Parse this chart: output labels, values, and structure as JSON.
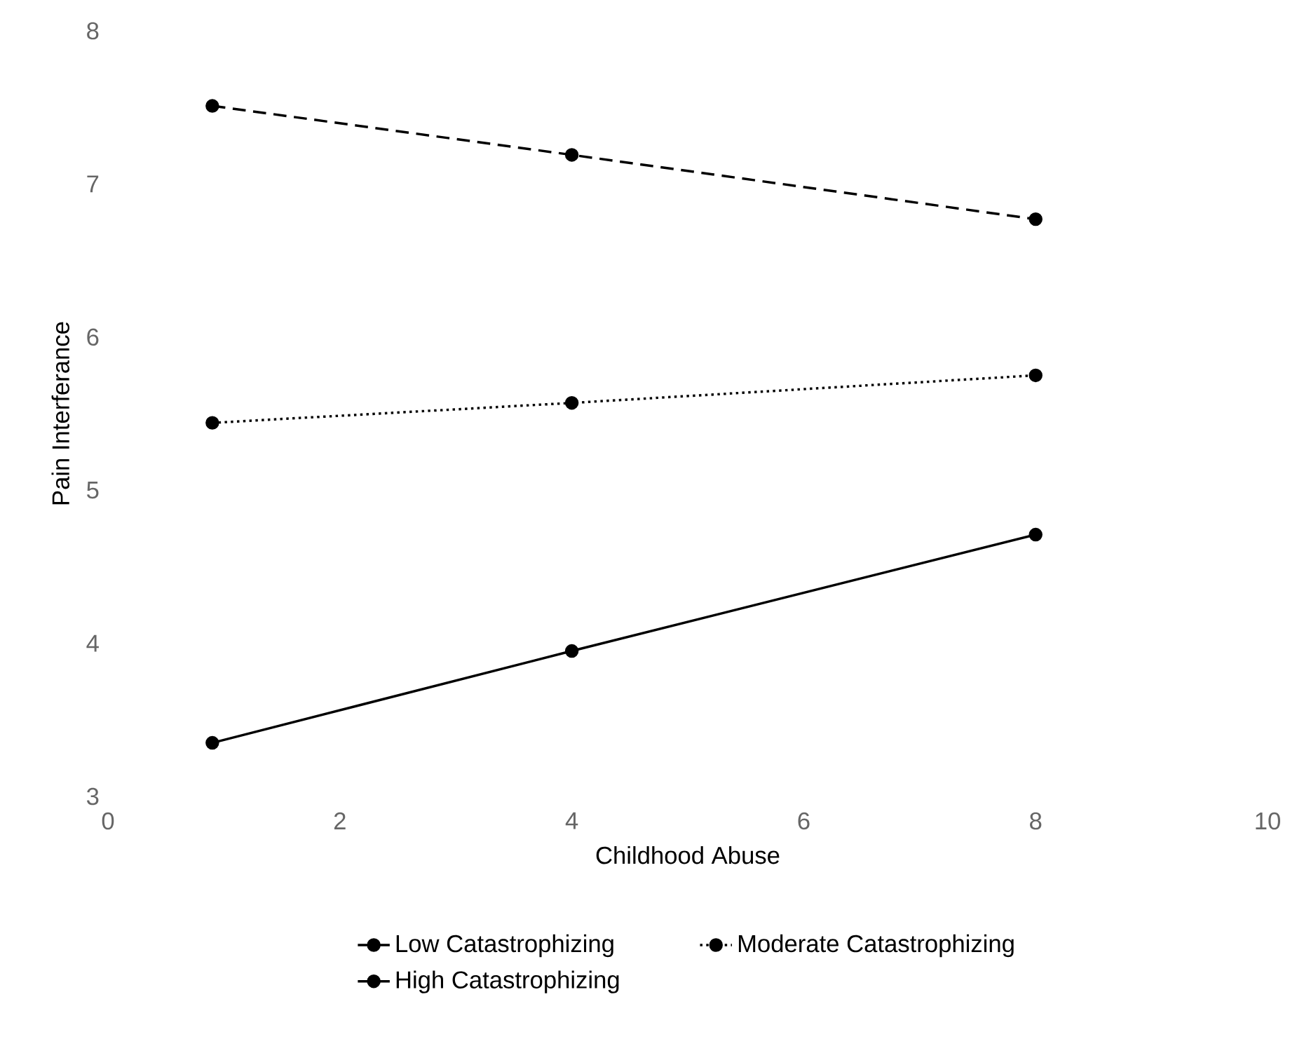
{
  "chart_data": {
    "type": "line",
    "xlabel": "Childhood Abuse",
    "ylabel": "Pain Interferance",
    "xlim": [
      0,
      10
    ],
    "xticks": [
      0,
      2,
      4,
      6,
      8,
      10
    ],
    "ylim": [
      3,
      8
    ],
    "yticks": [
      3,
      4,
      5,
      6,
      7,
      8
    ],
    "grid": false,
    "legend": "bottom",
    "marker": "circle",
    "series": [
      {
        "name": "Low Catastrophizing",
        "color": "#000000",
        "line_style": "solid",
        "x": [
          0.9,
          4,
          8
        ],
        "values": [
          3.35,
          3.95,
          4.71
        ]
      },
      {
        "name": "Moderate Catastrophizing",
        "color": "#000000",
        "line_style": "dotted",
        "x": [
          0.9,
          4,
          8
        ],
        "values": [
          5.44,
          5.57,
          5.75
        ]
      },
      {
        "name": "High Catastrophizing",
        "color": "#000000",
        "line_style": "dashed",
        "x": [
          0.9,
          4,
          8
        ],
        "values": [
          7.51,
          7.19,
          6.77
        ]
      }
    ]
  }
}
